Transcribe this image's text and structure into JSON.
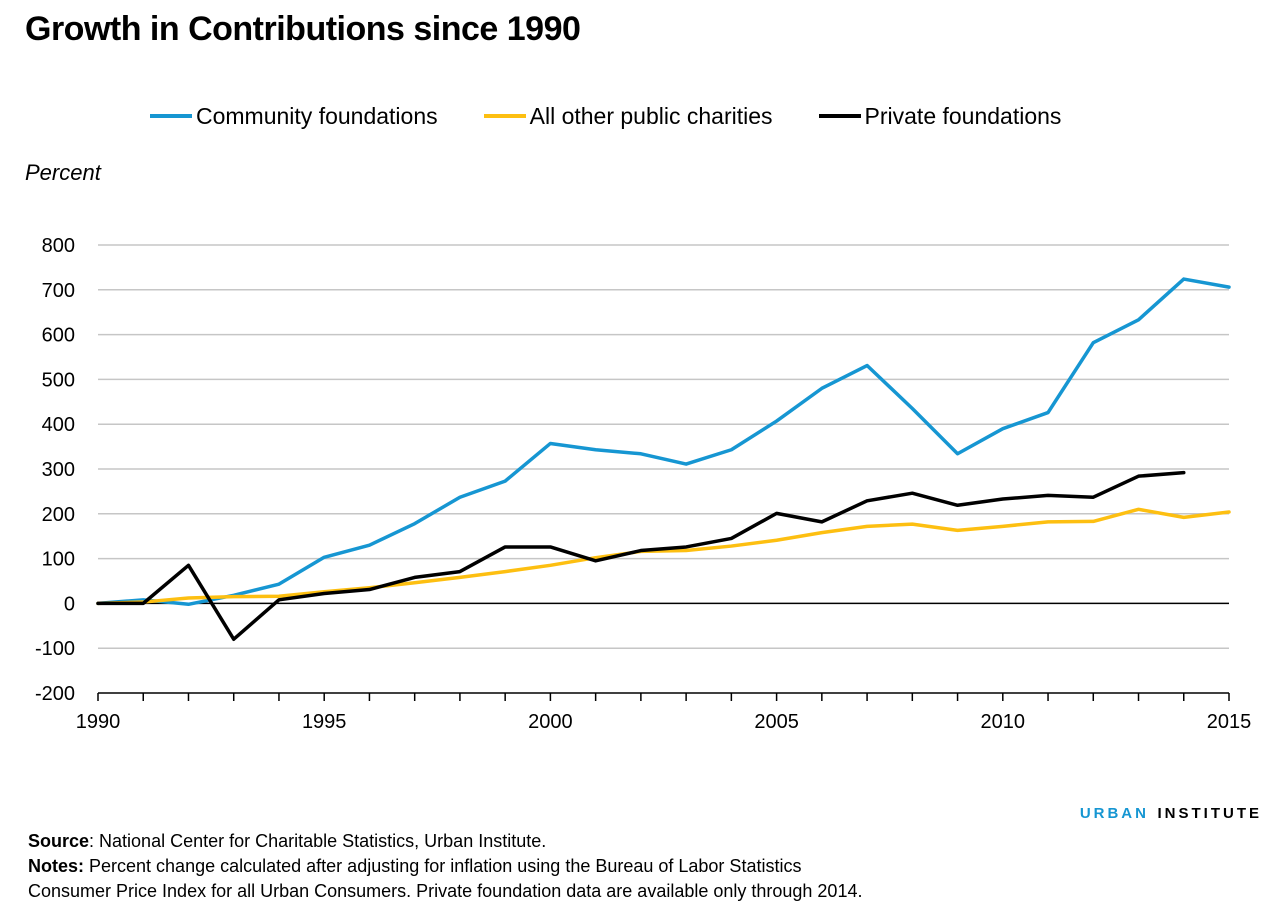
{
  "chart_data": {
    "type": "line",
    "title": "Growth in Contributions since 1990",
    "ylabel": "Percent",
    "xlabel": "",
    "xlim": [
      1990,
      2015
    ],
    "ylim": [
      -200,
      800
    ],
    "yticks": [
      -200,
      -100,
      0,
      100,
      200,
      300,
      400,
      500,
      600,
      700,
      800
    ],
    "xticks_labeled": [
      1990,
      1995,
      2000,
      2005,
      2010,
      2015
    ],
    "x": [
      1990,
      1991,
      1992,
      1993,
      1994,
      1995,
      1996,
      1997,
      1998,
      1999,
      2000,
      2001,
      2002,
      2003,
      2004,
      2005,
      2006,
      2007,
      2008,
      2009,
      2010,
      2011,
      2012,
      2013,
      2014,
      2015
    ],
    "grid": "horizontal",
    "legend_position": "top",
    "series": [
      {
        "name": "Community foundations",
        "color": "#1696d2",
        "values": [
          0,
          8,
          -2,
          18,
          43,
          103,
          130,
          178,
          237,
          273,
          357,
          343,
          334,
          311,
          343,
          407,
          480,
          531,
          435,
          334,
          390,
          426,
          582,
          633,
          724,
          706
        ]
      },
      {
        "name": "All other public charities",
        "color": "#fdbf11",
        "values": [
          0,
          3,
          12,
          15,
          16,
          26,
          35,
          46,
          58,
          71,
          85,
          102,
          116,
          118,
          128,
          141,
          158,
          172,
          177,
          163,
          172,
          182,
          183,
          210,
          192,
          204
        ]
      },
      {
        "name": "Private foundations",
        "color": "#000000",
        "values": [
          0,
          0,
          85,
          -80,
          8,
          22,
          31,
          58,
          71,
          126,
          126,
          95,
          118,
          126,
          145,
          201,
          182,
          229,
          246,
          219,
          233,
          241,
          237,
          284,
          292,
          null
        ]
      }
    ]
  },
  "footer": {
    "source_label": "Source",
    "source_text": ": National Center for Charitable Statistics, Urban Institute.",
    "notes_label": "Notes:",
    "notes_line1": " Percent change calculated after adjusting for inflation using the Bureau of Labor Statistics",
    "notes_line2": "Consumer Price Index for all Urban Consumers. Private foundation data are available only through 2014."
  },
  "brand": {
    "part1": "URBAN",
    "part2": "INSTITUTE"
  }
}
